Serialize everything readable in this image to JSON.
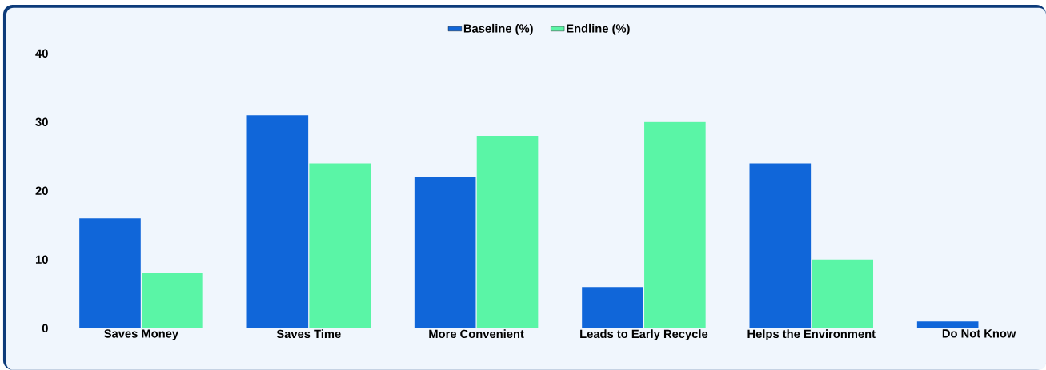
{
  "chart_data": {
    "type": "bar",
    "categories": [
      "Saves Money",
      "Saves Time",
      "More Convenient",
      "Leads to Early Recycle",
      "Helps the Environment",
      "Do Not Know"
    ],
    "series": [
      {
        "name": "Baseline (%)",
        "color": "#1066d9",
        "values": [
          16,
          31,
          22,
          6,
          24,
          1
        ]
      },
      {
        "name": "Endline (%)",
        "color": "#5af5a6",
        "values": [
          8,
          24,
          28,
          30,
          10,
          0
        ]
      }
    ],
    "ylim": [
      0,
      40
    ],
    "yticks": [
      0,
      10,
      20,
      30,
      40
    ],
    "grid": false,
    "legend": "top"
  }
}
